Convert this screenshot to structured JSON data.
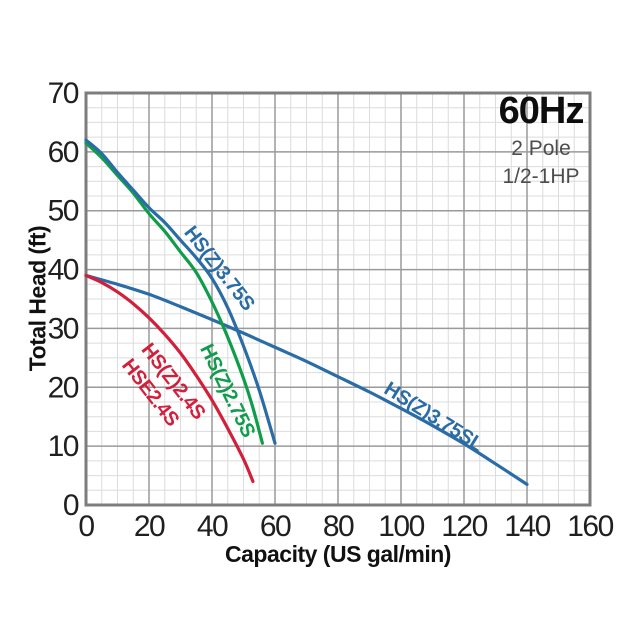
{
  "header": {
    "frequency": "60Hz",
    "poles": "2 Pole",
    "power": "1/2-1HP"
  },
  "chart_data": {
    "type": "line",
    "title": "",
    "xlabel": "Capacity (US gal/min)",
    "ylabel": "Total Head (ft)",
    "xlim": [
      0,
      160
    ],
    "ylim": [
      0,
      70
    ],
    "x_ticks": [
      0,
      20,
      40,
      60,
      80,
      100,
      120,
      140,
      160
    ],
    "y_ticks": [
      0,
      10,
      20,
      30,
      40,
      50,
      60,
      70
    ],
    "grid": {
      "major_x": 20,
      "minor_x": 5,
      "major_y": 10,
      "minor_y": 2.5,
      "major_color": "#9a9a9a",
      "minor_color": "#dcdcdc",
      "border_color": "#7d7d7d"
    },
    "tick_color": "#1f1f1f",
    "legend_position": "labels-on-curves",
    "series": [
      {
        "id": "hsz-3-75sl",
        "name": "HS(Z)3.75SL",
        "color": "#2a6ca6",
        "points": [
          [
            0,
            39
          ],
          [
            10,
            37.5
          ],
          [
            20,
            35.8
          ],
          [
            30,
            33.7
          ],
          [
            40,
            31.5
          ],
          [
            50,
            29.2
          ],
          [
            60,
            26.8
          ],
          [
            70,
            24.4
          ],
          [
            80,
            21.8
          ],
          [
            90,
            19.2
          ],
          [
            100,
            16.4
          ],
          [
            110,
            13.5
          ],
          [
            120,
            10.4
          ],
          [
            130,
            7
          ],
          [
            140,
            3.5
          ]
        ],
        "labels": [
          {
            "text": "HS(Z)3.75SL",
            "x": 110.5,
            "y": 15.1,
            "angle": 32
          }
        ]
      },
      {
        "id": "hsz-2-4s",
        "name": "HS(Z)2.4S / HSE2.4S",
        "color": "#d21f3c",
        "points": [
          [
            0,
            39
          ],
          [
            5,
            37.8
          ],
          [
            10,
            36.2
          ],
          [
            15,
            34.2
          ],
          [
            20,
            31.8
          ],
          [
            25,
            29
          ],
          [
            30,
            25.8
          ],
          [
            35,
            22
          ],
          [
            40,
            17.8
          ],
          [
            45,
            13
          ],
          [
            50,
            7.8
          ],
          [
            53,
            4
          ]
        ],
        "labels": [
          {
            "text": "HS(Z)2.4S",
            "x": 27.9,
            "y": 21.1,
            "angle": 52
          },
          {
            "text": "HSE2.4S",
            "x": 20.6,
            "y": 19.2,
            "angle": 52
          }
        ]
      },
      {
        "id": "hsz-2-75s",
        "name": "HS(Z)2.75S",
        "color": "#0f9d4b",
        "points": [
          [
            0,
            61.5
          ],
          [
            5,
            59
          ],
          [
            10,
            56
          ],
          [
            15,
            53
          ],
          [
            20,
            49.5
          ],
          [
            25,
            46.5
          ],
          [
            30,
            43
          ],
          [
            35,
            39.5
          ],
          [
            40,
            34.5
          ],
          [
            45,
            28.5
          ],
          [
            50,
            21.5
          ],
          [
            53,
            16.5
          ],
          [
            56,
            10.5
          ]
        ],
        "labels": [
          {
            "text": "HS(Z)2.75S",
            "x": 45.1,
            "y": 19.5,
            "angle": 64
          }
        ]
      },
      {
        "id": "hsz-3-75s",
        "name": "HS(Z)3.75S",
        "color": "#2a6ca6",
        "points": [
          [
            0,
            62
          ],
          [
            5,
            59.7
          ],
          [
            10,
            56.5
          ],
          [
            15,
            53.5
          ],
          [
            20,
            50.5
          ],
          [
            25,
            48
          ],
          [
            30,
            45
          ],
          [
            35,
            42
          ],
          [
            40,
            38.5
          ],
          [
            45,
            33.5
          ],
          [
            50,
            27
          ],
          [
            55,
            19.5
          ],
          [
            60,
            10.5
          ]
        ],
        "labels": [
          {
            "text": "HS(Z)3.75S",
            "x": 42.5,
            "y": 40.3,
            "angle": 52
          }
        ]
      }
    ]
  }
}
